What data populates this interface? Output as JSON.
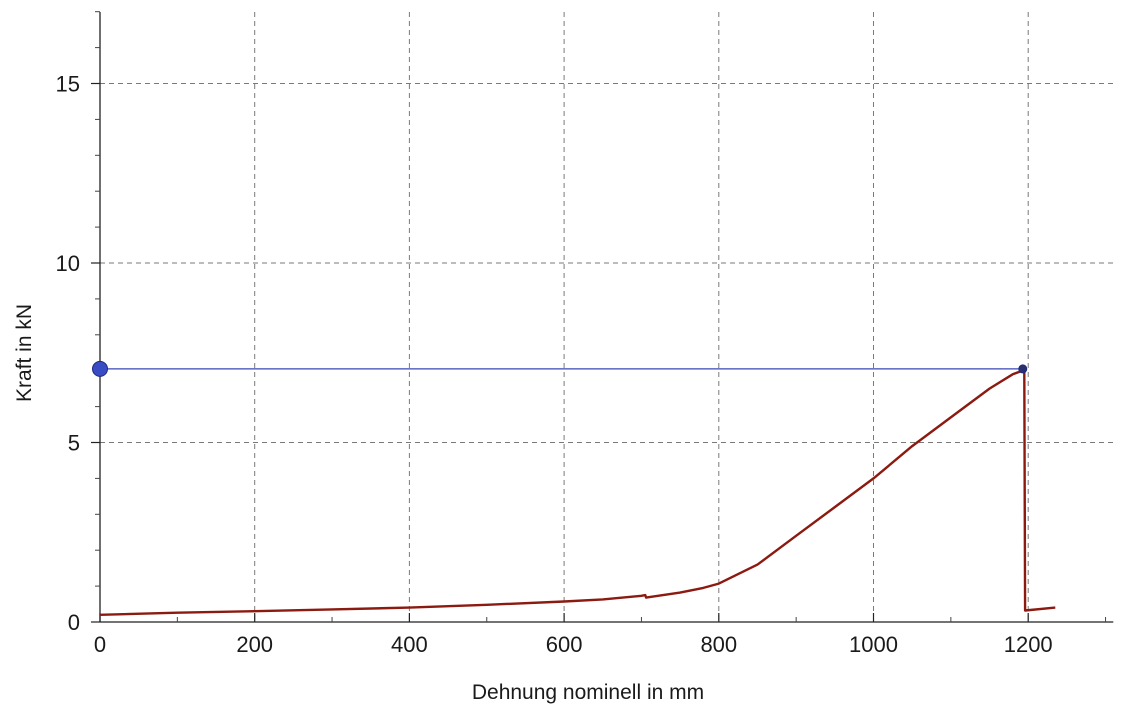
{
  "chart_data": {
    "type": "line",
    "title": "",
    "xlabel": "Dehnung nominell in mm",
    "ylabel": "Kraft in kN",
    "xlim": [
      -10,
      1310
    ],
    "ylim": [
      0,
      17
    ],
    "x_ticks": [
      0,
      200,
      400,
      600,
      800,
      1000,
      1200
    ],
    "y_ticks": [
      0,
      5,
      10,
      15
    ],
    "x_tick_labels": [
      "0",
      "200",
      "400",
      "600",
      "800",
      "1000",
      "1200"
    ],
    "y_tick_labels": [
      "0",
      "5",
      "10",
      "15"
    ],
    "x_minor_step": 100,
    "y_minor_step": 1,
    "grid": true,
    "legend": "none",
    "series": [
      {
        "color": "#8b1a10",
        "x": [
          0,
          100,
          200,
          300,
          400,
          500,
          600,
          650,
          700,
          705,
          706,
          750,
          780,
          800,
          850,
          900,
          950,
          1000,
          1050,
          1100,
          1150,
          1180,
          1195,
          1195,
          1196,
          1235
        ],
        "y": [
          0.2,
          0.26,
          0.3,
          0.35,
          0.4,
          0.48,
          0.57,
          0.63,
          0.73,
          0.75,
          0.68,
          0.82,
          0.95,
          1.07,
          1.6,
          2.4,
          3.2,
          4.0,
          4.9,
          5.7,
          6.5,
          6.9,
          7.02,
          7.0,
          0.32,
          0.4
        ]
      },
      {
        "color": "#3a47b3",
        "x": [
          0,
          1193
        ],
        "y": [
          7.05,
          7.05
        ]
      }
    ],
    "markers": [
      {
        "x": 0,
        "y": 7.05,
        "color": "#3a4cc4",
        "size": "large"
      },
      {
        "x": 1193,
        "y": 7.05,
        "color": "#2a2f6e",
        "size": "small"
      }
    ]
  }
}
